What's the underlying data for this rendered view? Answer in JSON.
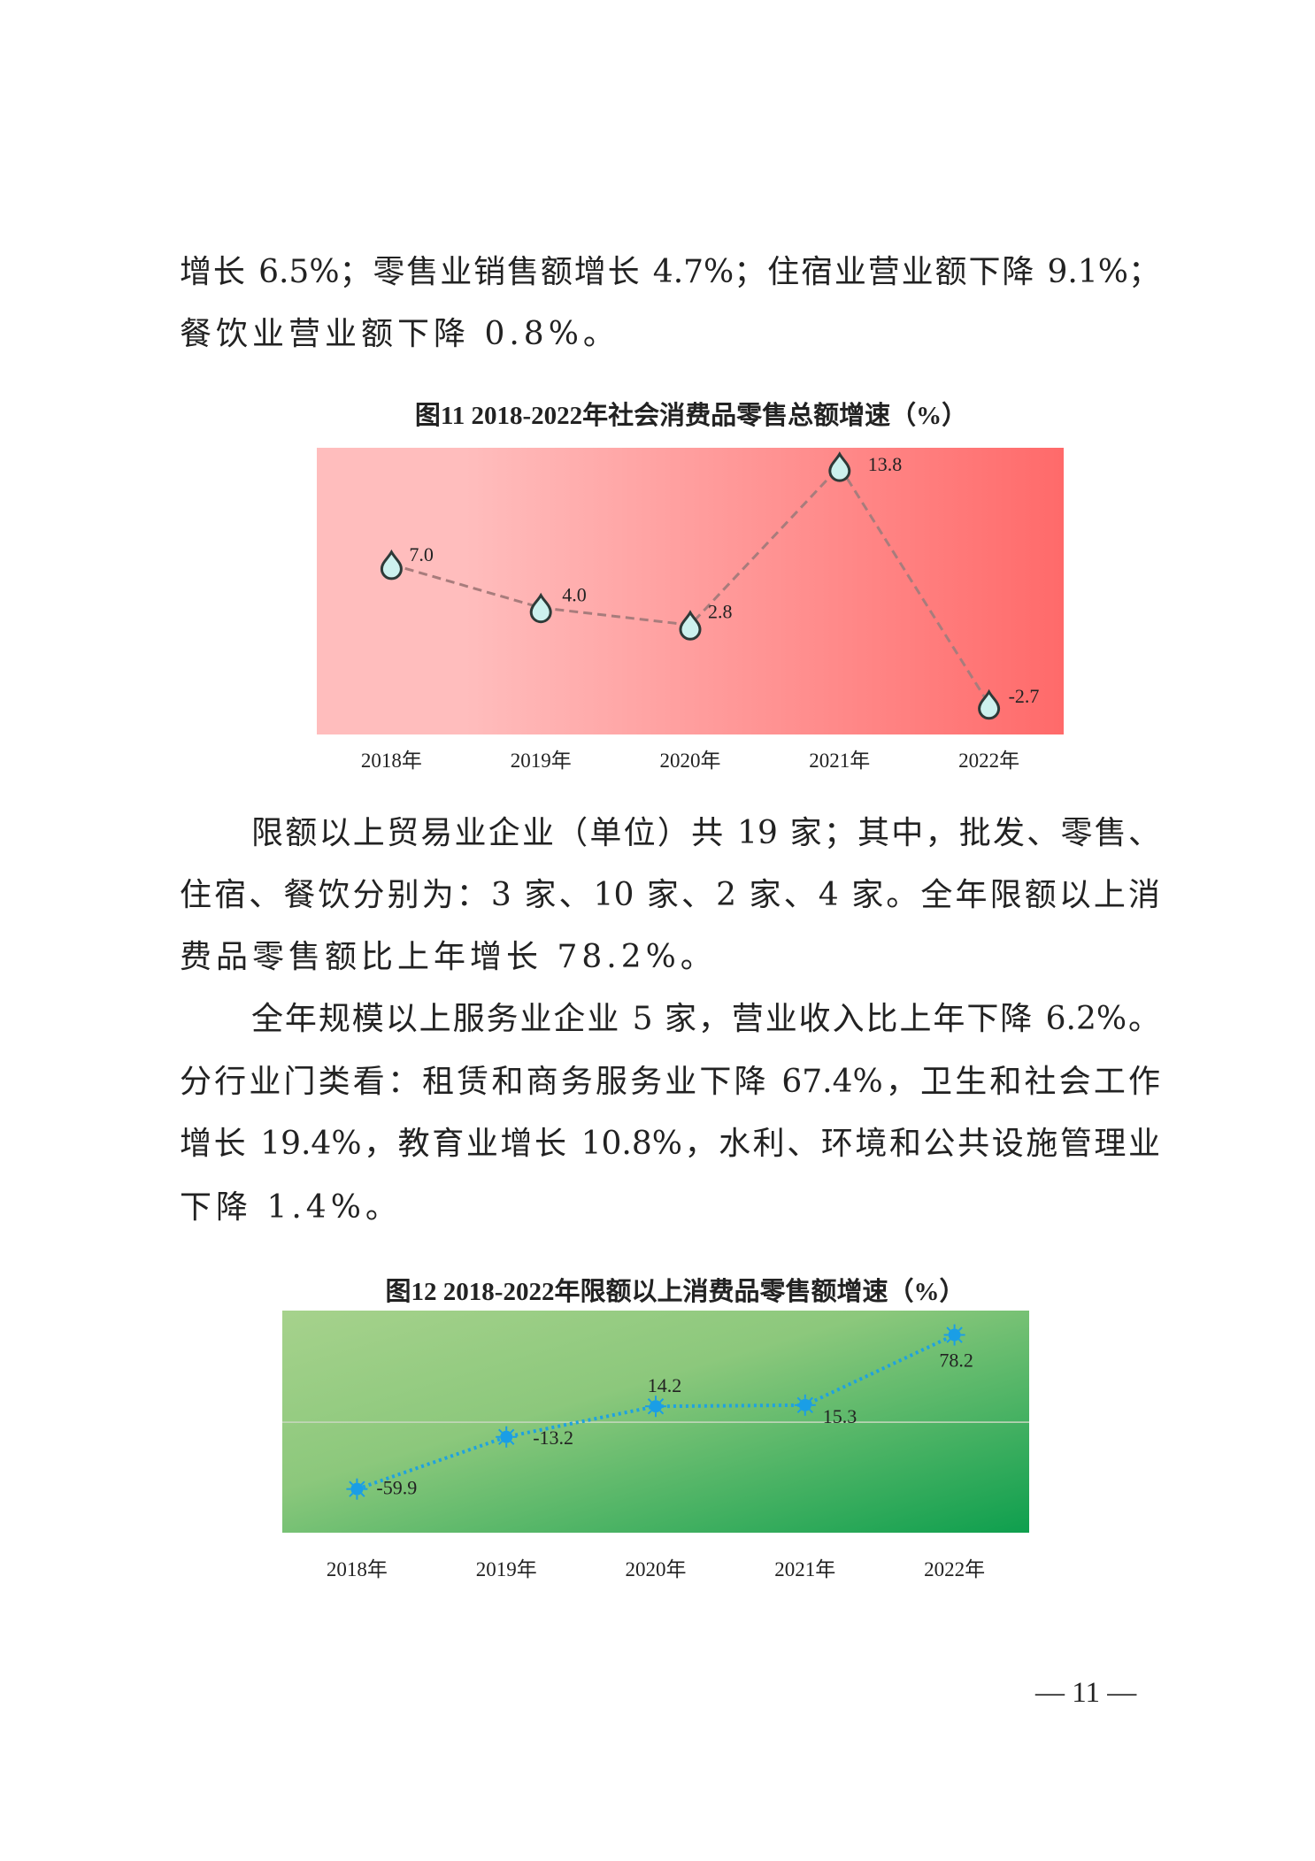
{
  "paragraphs": [
    {
      "lines": [
        "增长 6.5%；零售业销售额增长 4.7%；住宿业营业额下降 9.1%；",
        "餐饮业营业额下降 0.8%。"
      ]
    },
    {
      "lines": [
        "限额以上贸易业企业（单位）共 19 家；其中，批发、零售、",
        "住宿、餐饮分别为：3 家、10 家、2 家、4 家。全年限额以上消",
        "费品零售额比上年增长 78.2%。"
      ]
    },
    {
      "lines": [
        "全年规模以上服务业企业 5 家，营业收入比上年下降 6.2%。",
        "分行业门类看：租赁和商务服务业下降 67.4%，卫生和社会工作",
        "增长 19.4%，教育业增长 10.8%，水利、环境和公共设施管理业",
        "下降 1.4%。"
      ]
    }
  ],
  "chart_data": [
    {
      "type": "line",
      "title": "图11  2018-2022年社会消费品零售总额增速（%）",
      "categories": [
        "2018年",
        "2019年",
        "2020年",
        "2021年",
        "2022年"
      ],
      "values": [
        7.0,
        4.0,
        2.8,
        13.8,
        -2.7
      ],
      "labels": [
        "7.0",
        "4.0",
        "2.8",
        "13.8",
        "-2.7"
      ],
      "ylim": [
        -4.8,
        15.1
      ],
      "grid": false,
      "line_style": "dashed",
      "marker": "droplet",
      "colors": {
        "background_left": "#ffbdbd",
        "background_right": "#ff6a6a",
        "line": "#a87c7c",
        "marker_fill": "#cdf1ee",
        "marker_stroke": "#2e3a38"
      }
    },
    {
      "type": "line",
      "title": "图12  2018-2022年限额以上消费品零售额增速（%）",
      "categories": [
        "2018年",
        "2019年",
        "2020年",
        "2021年",
        "2022年"
      ],
      "values": [
        -59.9,
        -13.2,
        14.2,
        15.3,
        78.2
      ],
      "labels": [
        "-59.9",
        "-13.2",
        "14.2",
        "15.3",
        "78.2"
      ],
      "ylim": [
        -99,
        100
      ],
      "zero_line": true,
      "grid": false,
      "line_style": "dotted",
      "marker": "sunburst",
      "colors": {
        "background_top_left": "#a6d28c",
        "background_bottom_right": "#0e9f4e",
        "line": "#1fa2e0",
        "marker": "#1a9ee6",
        "zero_line": "#c8d8c0"
      }
    }
  ],
  "page_number": "— 11 —"
}
